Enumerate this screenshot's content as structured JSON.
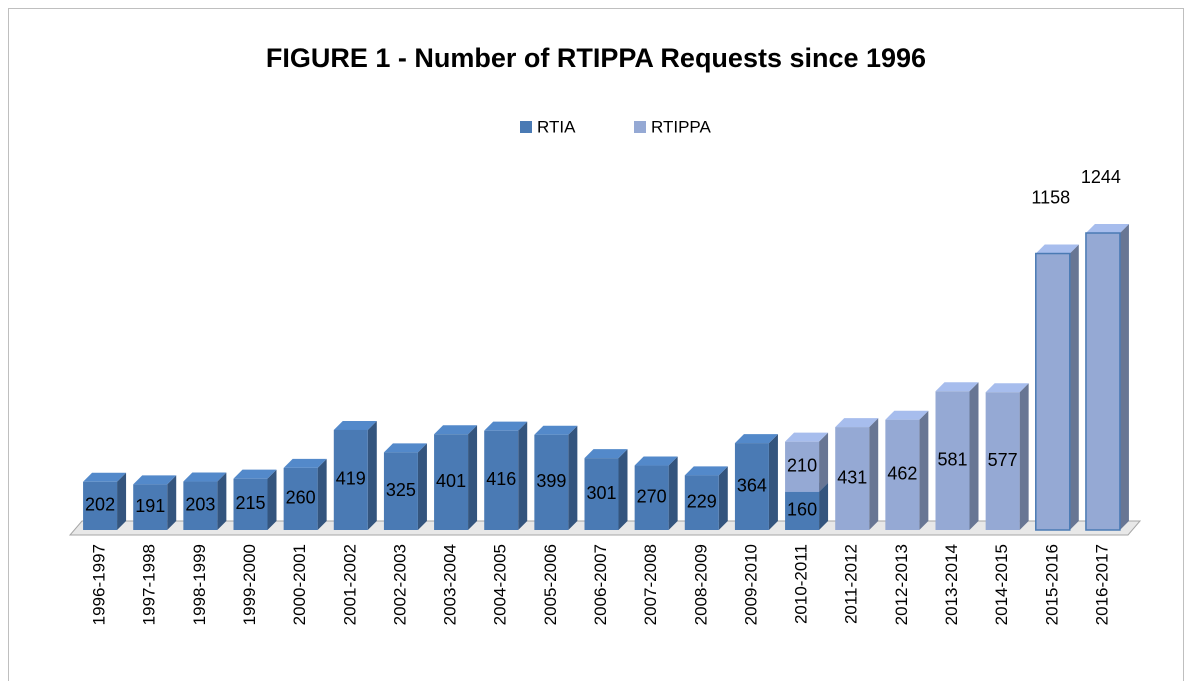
{
  "chart_data": {
    "type": "bar",
    "stacked": true,
    "three_d": true,
    "title": "FIGURE 1 - Number of RTIPPA Requests since 1996",
    "categories": [
      "1996-1997",
      "1997-1998",
      "1998-1999",
      "1999-2000",
      "2000-2001",
      "2001-2002",
      "2002-2003",
      "2003-2004",
      "2004-2005",
      "2005-2006",
      "2006-2007",
      "2007-2008",
      "2008-2009",
      "2009-2010",
      "2010-2011",
      "2011-2012",
      "2012-2013",
      "2013-2014",
      "2014-2015",
      "2015-2016",
      "2016-2017"
    ],
    "series": [
      {
        "name": "RTIA",
        "color": "#4a7ab4",
        "values": [
          202,
          191,
          203,
          215,
          260,
          419,
          325,
          401,
          416,
          399,
          301,
          270,
          229,
          364,
          160,
          null,
          null,
          null,
          null,
          null,
          null
        ]
      },
      {
        "name": "RTIPPA",
        "color": "#95a9d4",
        "values": [
          null,
          null,
          null,
          null,
          null,
          null,
          null,
          null,
          null,
          null,
          null,
          null,
          null,
          null,
          210,
          431,
          462,
          581,
          577,
          1158,
          1244
        ]
      }
    ],
    "legend": "top"
  }
}
